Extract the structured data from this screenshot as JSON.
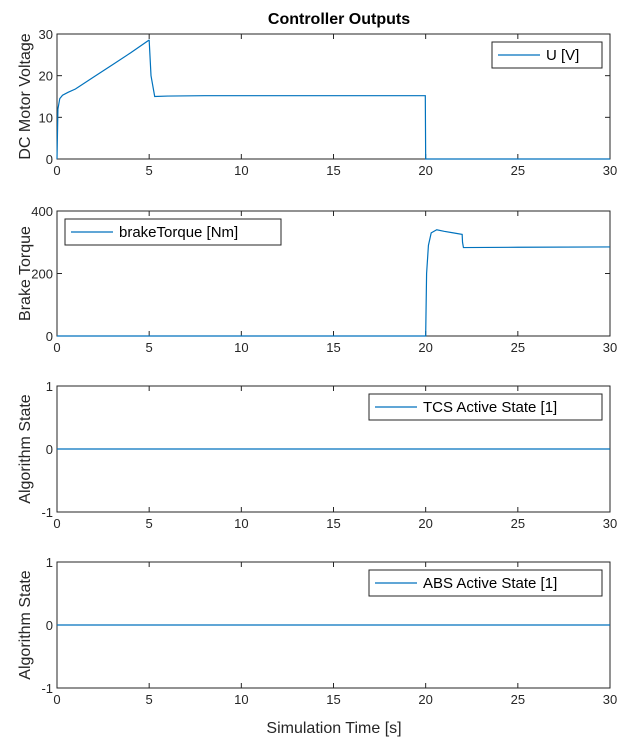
{
  "chart_data": {
    "type": "line",
    "title": "Controller Outputs",
    "xlabel": "Simulation Time [s]",
    "line_color": "#0072BD",
    "subplots": [
      {
        "ylabel": "DC Motor Voltage",
        "xlim": [
          0,
          30
        ],
        "ylim": [
          0,
          30
        ],
        "xticks": [
          0,
          5,
          10,
          15,
          20,
          25,
          30
        ],
        "yticks": [
          0,
          10,
          20,
          30
        ],
        "legend": "top-right",
        "series": [
          {
            "name": "U [V]",
            "x": [
              0,
              0.05,
              0.15,
              0.3,
              0.6,
              1.0,
              2.0,
              3.0,
              4.0,
              4.98,
              5.0,
              5.1,
              5.3,
              6.0,
              8.0,
              10.0,
              15.0,
              19.98,
              20.0,
              25.0,
              30.0
            ],
            "y": [
              0,
              12.0,
              14.5,
              15.3,
              16.0,
              16.8,
              19.7,
              22.6,
              25.5,
              28.5,
              28.5,
              20.0,
              15.0,
              15.1,
              15.2,
              15.2,
              15.2,
              15.2,
              0,
              0,
              0
            ]
          }
        ]
      },
      {
        "ylabel": "Brake Torque",
        "xlim": [
          0,
          30
        ],
        "ylim": [
          0,
          400
        ],
        "xticks": [
          0,
          5,
          10,
          15,
          20,
          25,
          30
        ],
        "yticks": [
          0,
          200,
          400
        ],
        "legend": "top-left",
        "series": [
          {
            "name": "brakeTorque [Nm]",
            "x": [
              0,
              19.98,
              20.0,
              20.05,
              20.15,
              20.3,
              20.6,
              21.0,
              21.5,
              21.98,
              22.0,
              22.05,
              25.0,
              30.0
            ],
            "y": [
              0,
              0,
              0,
              200,
              290,
              330,
              340,
              335,
              330,
              325,
              300,
              283,
              284,
              285
            ]
          }
        ]
      },
      {
        "ylabel": "Algorithm State",
        "xlim": [
          0,
          30
        ],
        "ylim": [
          -1,
          1
        ],
        "xticks": [
          0,
          5,
          10,
          15,
          20,
          25,
          30
        ],
        "yticks": [
          -1,
          0,
          1
        ],
        "legend": "top-right",
        "series": [
          {
            "name": "TCS Active State [1]",
            "x": [
              0,
              30
            ],
            "y": [
              0,
              0
            ]
          }
        ]
      },
      {
        "ylabel": "Algorithm State",
        "xlim": [
          0,
          30
        ],
        "ylim": [
          -1,
          1
        ],
        "xticks": [
          0,
          5,
          10,
          15,
          20,
          25,
          30
        ],
        "yticks": [
          -1,
          0,
          1
        ],
        "legend": "top-right",
        "series": [
          {
            "name": "ABS Active State [1]",
            "x": [
              0,
              30
            ],
            "y": [
              0,
              0
            ]
          }
        ]
      }
    ]
  }
}
